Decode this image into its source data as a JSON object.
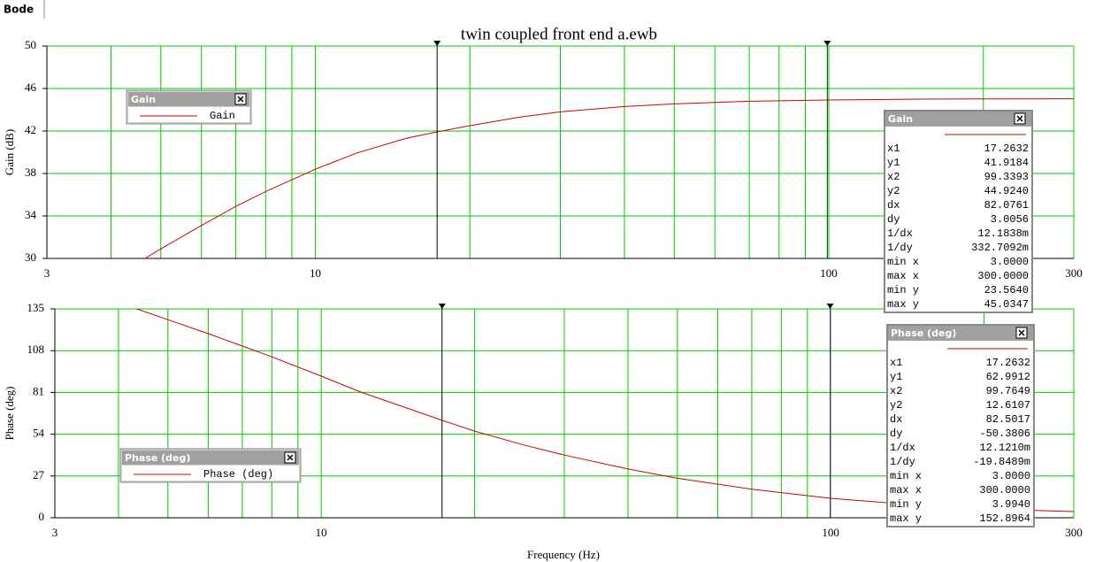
{
  "tab": "Bode",
  "chart_data": [
    {
      "type": "line",
      "title": "twin coupled front end a.ewb",
      "y_label": "Gain (dB)",
      "x": [
        4.66,
        5,
        6,
        7,
        8,
        10,
        12,
        15,
        17.26,
        20,
        25,
        30,
        40,
        50,
        70,
        99.34,
        150,
        200,
        300
      ],
      "series": [
        {
          "name": "Gain",
          "color": "#cc0000",
          "values": [
            30,
            30.9,
            33.1,
            34.9,
            36.3,
            38.4,
            39.9,
            41.3,
            41.92,
            42.5,
            43.3,
            43.8,
            44.3,
            44.55,
            44.8,
            44.92,
            45.0,
            45.02,
            45.03
          ]
        }
      ],
      "x_scale": "log",
      "xlim": [
        3,
        300
      ],
      "xticks": [
        3,
        10,
        100,
        300
      ],
      "minor_xticks": [
        4,
        5,
        6,
        7,
        8,
        9,
        20,
        30,
        40,
        50,
        60,
        70,
        80,
        90,
        200
      ],
      "ylim": [
        30,
        50
      ],
      "yticks": [
        30,
        34,
        38,
        42,
        46,
        50
      ],
      "grid": true,
      "grid_color": "#00cc00",
      "cursors": [
        {
          "x": 17.2632,
          "color": "#000000"
        },
        {
          "x": 99.3393,
          "color": "#003300"
        }
      ]
    },
    {
      "type": "line",
      "y_label": "Phase (deg)",
      "x_label": "Frequency (Hz)",
      "x": [
        4.34,
        5,
        6,
        7,
        8,
        10,
        12,
        15,
        17.26,
        20,
        25,
        30,
        40,
        50,
        70,
        99.76,
        150,
        200,
        300
      ],
      "series": [
        {
          "name": "Phase (deg)",
          "color": "#cc0000",
          "values": [
            135,
            128,
            119,
            111,
            104,
            91.5,
            81,
            70,
            62.99,
            56,
            47,
            40.5,
            31.5,
            25.5,
            18.5,
            12.61,
            8,
            5.8,
            3.99
          ]
        }
      ],
      "x_scale": "log",
      "xlim": [
        3,
        300
      ],
      "xticks": [
        3,
        10,
        100,
        300
      ],
      "minor_xticks": [
        4,
        5,
        6,
        7,
        8,
        9,
        20,
        30,
        40,
        50,
        60,
        70,
        80,
        90,
        200
      ],
      "ylim": [
        0,
        135
      ],
      "yticks": [
        0,
        27,
        54,
        81,
        108,
        135
      ],
      "grid": true,
      "grid_color": "#00cc00",
      "cursors": [
        {
          "x": 17.2632,
          "color": "#000000"
        },
        {
          "x": 99.7649,
          "color": "#7700aa"
        }
      ]
    }
  ],
  "cursor_panels": [
    {
      "title": "Gain",
      "rows": [
        [
          "x1",
          "17.2632"
        ],
        [
          "y1",
          "41.9184"
        ],
        [
          "x2",
          "99.3393"
        ],
        [
          "y2",
          "44.9240"
        ],
        [
          "dx",
          "82.0761"
        ],
        [
          "dy",
          "3.0056"
        ],
        [
          "1/dx",
          "12.1838m"
        ],
        [
          "1/dy",
          "332.7092m"
        ],
        [
          "min x",
          "3.0000"
        ],
        [
          "max x",
          "300.0000"
        ],
        [
          "min y",
          "23.5640"
        ],
        [
          "max y",
          "45.0347"
        ]
      ]
    },
    {
      "title": "Phase (deg)",
      "rows": [
        [
          "x1",
          "17.2632"
        ],
        [
          "y1",
          "62.9912"
        ],
        [
          "x2",
          "99.7649"
        ],
        [
          "y2",
          "12.6107"
        ],
        [
          "dx",
          "82.5017"
        ],
        [
          "dy",
          "-50.3806"
        ],
        [
          "1/dx",
          "12.1210m"
        ],
        [
          "1/dy",
          "-19.8489m"
        ],
        [
          "min x",
          "3.0000"
        ],
        [
          "max x",
          "300.0000"
        ],
        [
          "min y",
          "3.9940"
        ],
        [
          "max y",
          "152.8964"
        ]
      ]
    }
  ]
}
